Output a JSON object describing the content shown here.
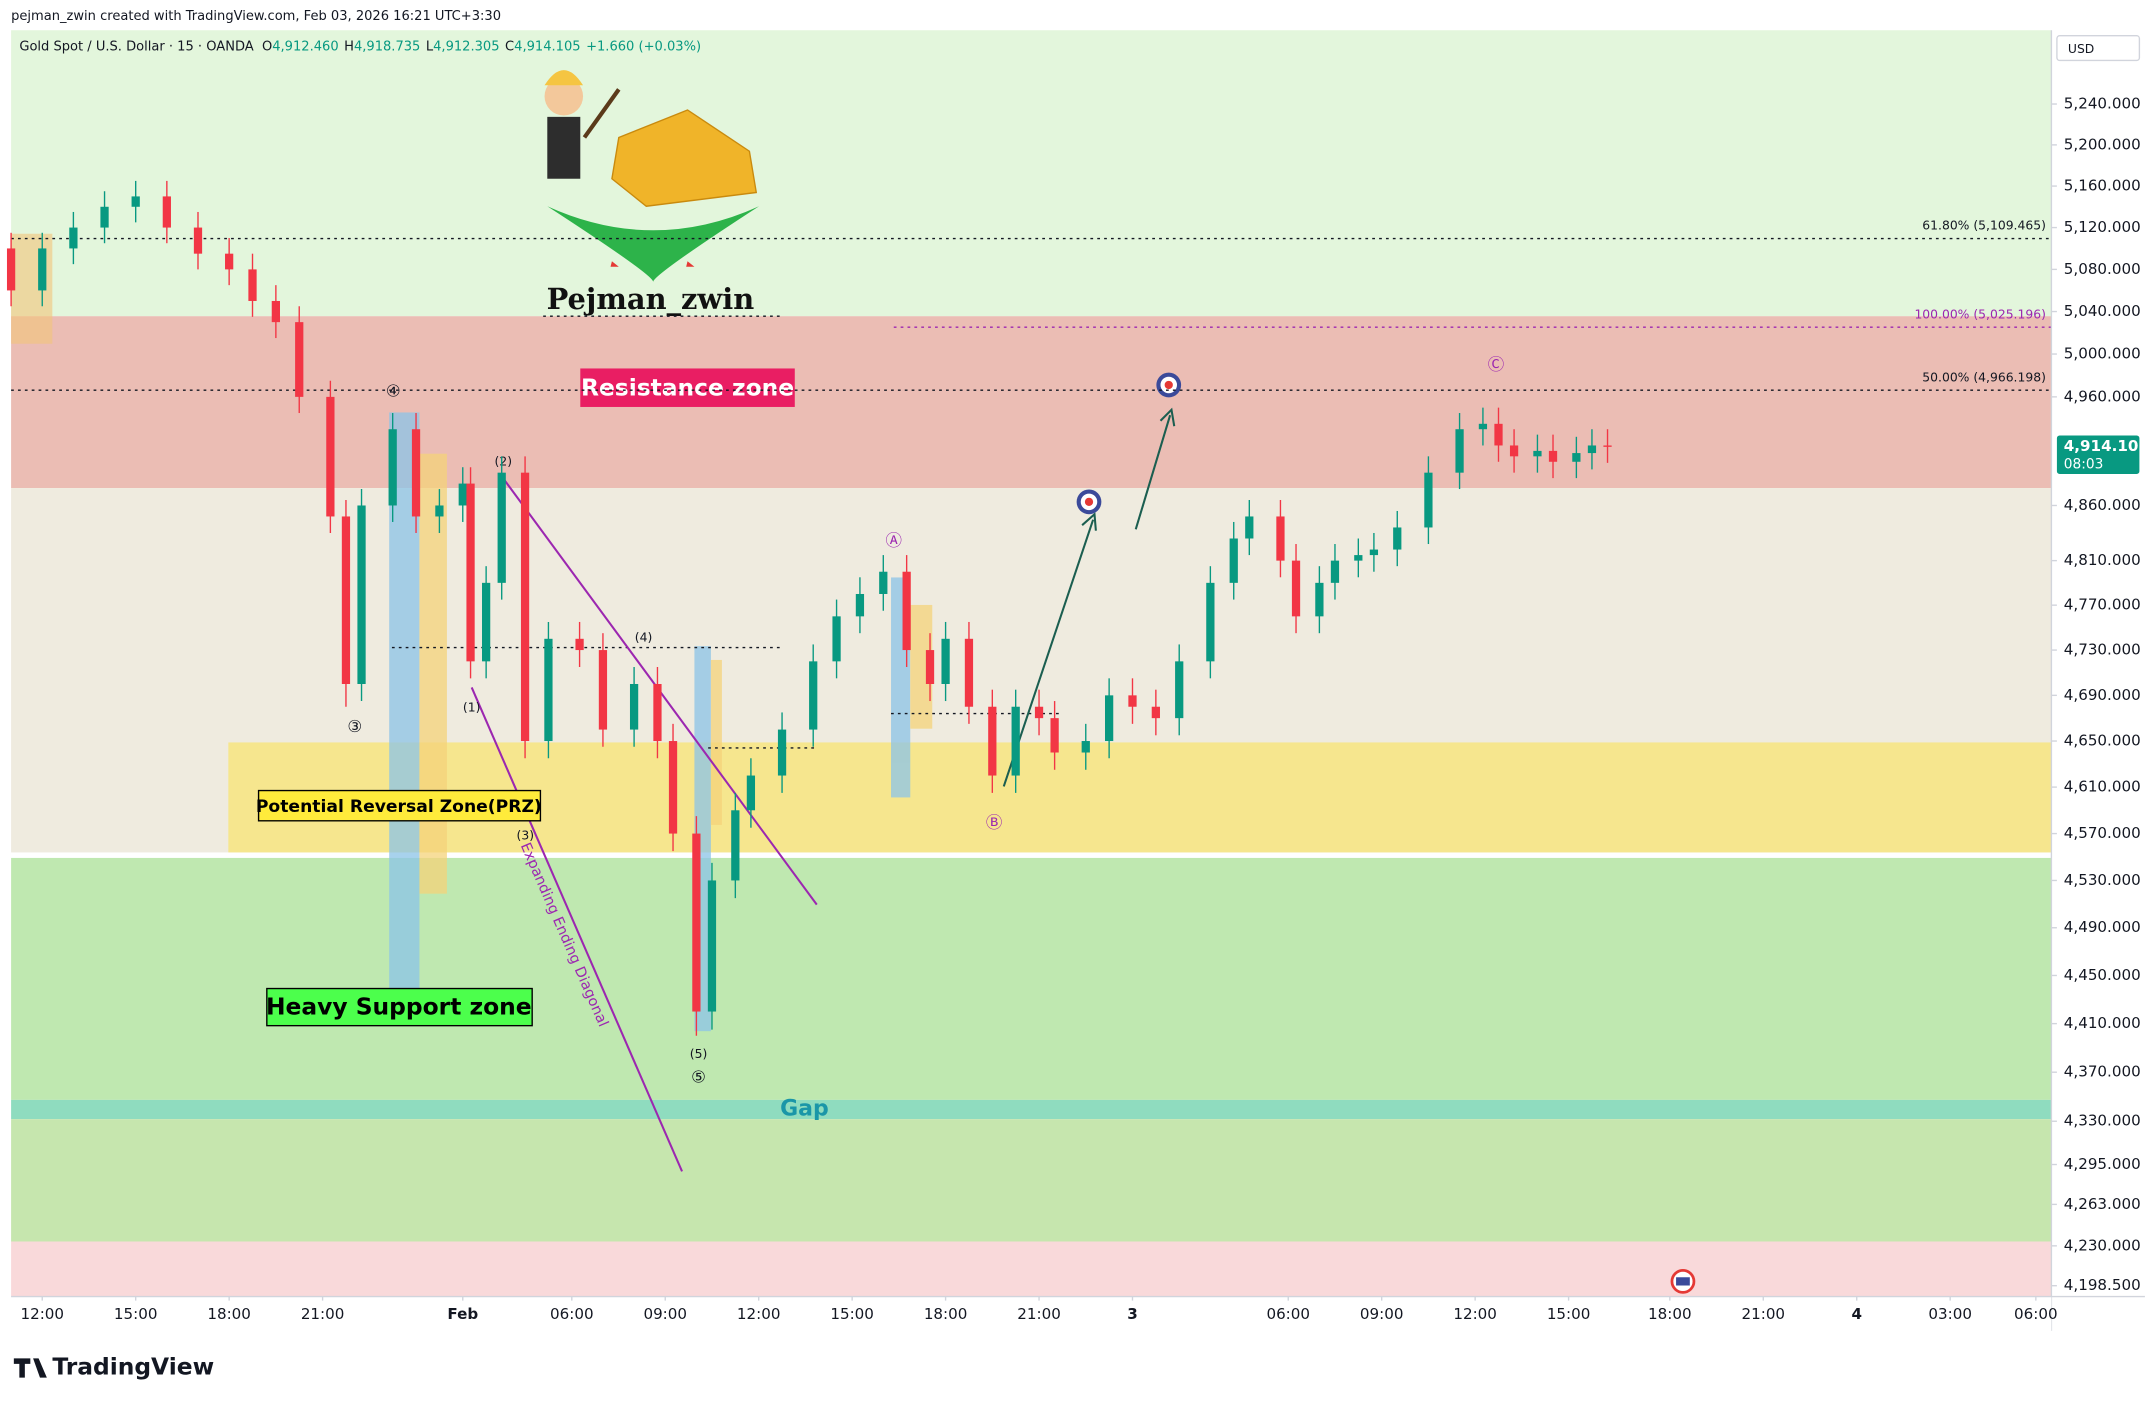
{
  "header": {
    "credit": "pejman_zwin created with TradingView.com, Feb 03, 2026 16:21 UTC+3:30",
    "symbol": "Gold Spot / U.S. Dollar · 15 · OANDA",
    "ohlc": [
      {
        "key": "O",
        "value": "4,912.460"
      },
      {
        "key": "H",
        "value": "4,918.735"
      },
      {
        "key": "L",
        "value": "4,912.305"
      },
      {
        "key": "C",
        "value": "4,914.105"
      }
    ],
    "change": "+1.660 (+0.03%)"
  },
  "chart_data": {
    "type": "candlestick",
    "log_scale": true,
    "grid": false,
    "currency": "USD",
    "up_color": "#089981",
    "down_color": "#f23645",
    "x": [
      0,
      4,
      8,
      12,
      16,
      20,
      24,
      28,
      31,
      34,
      37,
      41,
      43,
      45,
      49,
      52,
      55,
      58,
      59,
      61,
      63,
      66,
      69,
      73,
      76,
      80,
      83,
      85,
      88,
      90,
      93,
      95,
      99,
      103,
      106,
      109,
      112,
      115,
      118,
      120,
      123,
      126,
      129,
      132,
      134,
      138,
      141,
      144,
      147,
      150,
      154,
      157,
      159,
      163,
      165,
      168,
      170,
      173,
      175,
      178,
      182,
      186,
      189,
      191,
      193,
      196,
      198,
      201,
      203,
      205
    ],
    "open": [
      5100,
      5060,
      5100,
      5120,
      5140,
      5150,
      5120,
      5095,
      5080,
      5050,
      5030,
      4960,
      4850,
      4700,
      4860,
      4930,
      4850,
      4860,
      4880,
      4720,
      4790,
      4890,
      4650,
      4740,
      4730,
      4660,
      4700,
      4650,
      4570,
      4420,
      4530,
      4590,
      4620,
      4660,
      4720,
      4760,
      4780,
      4800,
      4730,
      4700,
      4740,
      4680,
      4620,
      4680,
      4670,
      4640,
      4650,
      4690,
      4680,
      4670,
      4720,
      4790,
      4830,
      4850,
      4810,
      4760,
      4790,
      4810,
      4815,
      4820,
      4840,
      4890,
      4930,
      4935,
      4915,
      4905,
      4910,
      4900,
      4908,
      4915
    ],
    "high": [
      5115,
      5115,
      5135,
      5155,
      5165,
      5165,
      5135,
      5110,
      5095,
      5065,
      5045,
      4975,
      4865,
      4875,
      4945,
      4945,
      4875,
      4895,
      4895,
      4805,
      4905,
      4905,
      4755,
      4755,
      4745,
      4715,
      4715,
      4665,
      4585,
      4545,
      4605,
      4635,
      4675,
      4735,
      4775,
      4795,
      4815,
      4815,
      4745,
      4755,
      4755,
      4695,
      4695,
      4695,
      4685,
      4665,
      4705,
      4705,
      4695,
      4735,
      4805,
      4845,
      4865,
      4865,
      4825,
      4805,
      4825,
      4830,
      4835,
      4855,
      4905,
      4945,
      4950,
      4950,
      4930,
      4925,
      4925,
      4923,
      4930,
      4930
    ],
    "low": [
      5045,
      5045,
      5085,
      5105,
      5125,
      5105,
      5080,
      5065,
      5035,
      5015,
      4945,
      4835,
      4680,
      4685,
      4845,
      4835,
      4835,
      4845,
      4705,
      4705,
      4775,
      4635,
      4635,
      4715,
      4645,
      4645,
      4635,
      4555,
      4400,
      4405,
      4515,
      4575,
      4605,
      4645,
      4705,
      4745,
      4765,
      4715,
      4685,
      4685,
      4665,
      4605,
      4605,
      4655,
      4625,
      4625,
      4635,
      4665,
      4655,
      4655,
      4705,
      4775,
      4815,
      4795,
      4745,
      4745,
      4775,
      4795,
      4800,
      4805,
      4825,
      4875,
      4915,
      4900,
      4890,
      4890,
      4885,
      4885,
      4893,
      4899
    ],
    "close": [
      5060,
      5100,
      5120,
      5140,
      5150,
      5120,
      5095,
      5080,
      5050,
      5030,
      4960,
      4850,
      4700,
      4860,
      4930,
      4850,
      4860,
      4880,
      4720,
      4790,
      4890,
      4650,
      4740,
      4730,
      4660,
      4700,
      4650,
      4570,
      4420,
      4530,
      4590,
      4620,
      4660,
      4720,
      4760,
      4780,
      4800,
      4730,
      4700,
      4740,
      4680,
      4620,
      4680,
      4670,
      4640,
      4650,
      4690,
      4680,
      4670,
      4720,
      4790,
      4830,
      4850,
      4810,
      4760,
      4790,
      4810,
      4815,
      4820,
      4840,
      4890,
      4930,
      4935,
      4915,
      4905,
      4910,
      4900,
      4908,
      4915,
      4914.105
    ],
    "xlim": [
      0,
      262
    ],
    "xticks": [
      {
        "value": 4,
        "label": "12:00"
      },
      {
        "value": 16,
        "label": "15:00"
      },
      {
        "value": 28,
        "label": "18:00"
      },
      {
        "value": 40,
        "label": "21:00"
      },
      {
        "value": 58,
        "label": "Feb"
      },
      {
        "value": 72,
        "label": "06:00"
      },
      {
        "value": 84,
        "label": "09:00"
      },
      {
        "value": 96,
        "label": "12:00"
      },
      {
        "value": 108,
        "label": "15:00"
      },
      {
        "value": 120,
        "label": "18:00"
      },
      {
        "value": 132,
        "label": "21:00"
      },
      {
        "value": 144,
        "label": "3"
      },
      {
        "value": 164,
        "label": "06:00"
      },
      {
        "value": 176,
        "label": "09:00"
      },
      {
        "value": 188,
        "label": "12:00"
      },
      {
        "value": 200,
        "label": "15:00"
      },
      {
        "value": 213,
        "label": "18:00"
      },
      {
        "value": 225,
        "label": "21:00"
      },
      {
        "value": 237,
        "label": "4"
      },
      {
        "value": 249,
        "label": "03:00"
      },
      {
        "value": 260,
        "label": "06:00"
      }
    ],
    "ylim": [
      4190,
      5313
    ],
    "yticks": [
      {
        "value": 5240,
        "label": "5,240.000"
      },
      {
        "value": 5200,
        "label": "5,200.000"
      },
      {
        "value": 5160,
        "label": "5,160.000"
      },
      {
        "value": 5120,
        "label": "5,120.000"
      },
      {
        "value": 5080,
        "label": "5,080.000"
      },
      {
        "value": 5040,
        "label": "5,040.000"
      },
      {
        "value": 5000,
        "label": "5,000.000"
      },
      {
        "value": 4960,
        "label": "4,960.000"
      },
      {
        "value": 4860,
        "label": "4,860.000"
      },
      {
        "value": 4810,
        "label": "4,810.000"
      },
      {
        "value": 4770,
        "label": "4,770.000"
      },
      {
        "value": 4730,
        "label": "4,730.000"
      },
      {
        "value": 4690,
        "label": "4,690.000"
      },
      {
        "value": 4650,
        "label": "4,650.000"
      },
      {
        "value": 4610,
        "label": "4,610.000"
      },
      {
        "value": 4570,
        "label": "4,570.000"
      },
      {
        "value": 4530,
        "label": "4,530.000"
      },
      {
        "value": 4490,
        "label": "4,490.000"
      },
      {
        "value": 4450,
        "label": "4,450.000"
      },
      {
        "value": 4410,
        "label": "4,410.000"
      },
      {
        "value": 4370,
        "label": "4,370.000"
      },
      {
        "value": 4330,
        "label": "4,330.000"
      },
      {
        "value": 4295,
        "label": "4,295.000"
      },
      {
        "value": 4263,
        "label": "4,263.000"
      },
      {
        "value": 4230,
        "label": "4,230.000"
      },
      {
        "value": 4198.5,
        "label": "4,198.500"
      }
    ],
    "last_price": {
      "value": 4914.105,
      "label": "4,914.105"
    },
    "countdown": "08:03",
    "fib_levels": [
      {
        "value": 5109.465,
        "label": "61.80% (5,109.465)",
        "color": "#131722"
      },
      {
        "value": 5025.196,
        "label": "100.00% (5,025.196)",
        "color": "#9c27b0"
      },
      {
        "value": 4966.198,
        "label": "50.00% (4,966.198)",
        "color": "#131722"
      }
    ],
    "annotations": {
      "author": "Pejman_zwin",
      "resistance": "Resistance zone",
      "prz": "Potential Reversal Zone(PRZ)",
      "support": "Heavy Support zone",
      "gap": "Gap",
      "diagonal": "Expanding Ending Diagonal"
    },
    "waves": [
      "(1)",
      "(2)",
      "(3)",
      "(4)",
      "(5)",
      "③",
      "④",
      "⑤",
      "Ⓐ",
      "Ⓑ",
      "Ⓒ"
    ]
  },
  "footer": {
    "logo": "TradingView"
  }
}
